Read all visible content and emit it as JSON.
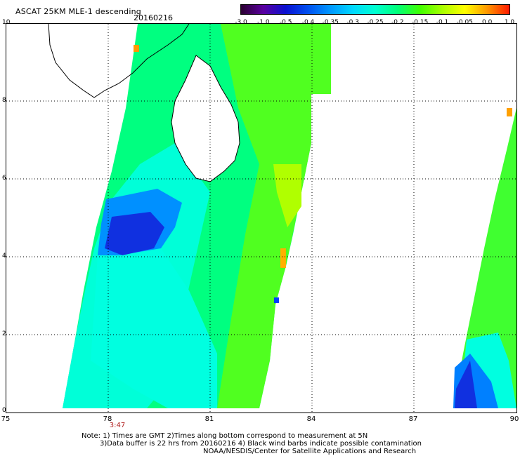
{
  "header": {
    "title": "ASCAT 25KM MLE-1 descending",
    "date": "20160216"
  },
  "colorbar": {
    "labels": [
      "-3.0",
      "-1.0",
      "-0.5",
      "-0.4",
      "-0.35",
      "-0.3",
      "-0.25",
      "-0.2",
      "-0.15",
      "-0.1",
      "-0.05",
      "0.0",
      "1.0"
    ],
    "colors": [
      "#2a0030",
      "#5a00a0",
      "#0a10d0",
      "#0050f0",
      "#0098ff",
      "#00d8ff",
      "#00ffd0",
      "#00ff78",
      "#40ff00",
      "#a8ff00",
      "#ffff00",
      "#ff9800",
      "#ff1800"
    ]
  },
  "axes": {
    "x_ticks": [
      "75",
      "78",
      "81",
      "84",
      "87",
      "90"
    ],
    "y_ticks": [
      "0",
      "2",
      "4",
      "6",
      "8",
      "10"
    ],
    "time_label": "3:47"
  },
  "notes": {
    "line1": "Note: 1) Times are GMT 2)Times along bottom correspond to measurement at 5N",
    "line2": "3)Data buffer is 22 hrs from 20160216 4) Black wind barbs indicate possible contamination",
    "line3": "NOAA/NESDIS/Center for Satellite Applications and Research"
  }
}
